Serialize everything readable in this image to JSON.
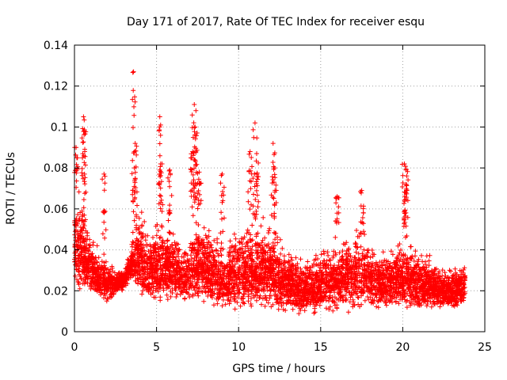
{
  "chart_data": {
    "type": "scatter",
    "title": "Day 171 of 2017, Rate Of TEC Index for receiver esqu",
    "xlabel": "GPS time / hours",
    "ylabel": "ROTI / TECUs",
    "xlim": [
      0,
      25
    ],
    "ylim": [
      0,
      0.14
    ],
    "xticks": [
      0,
      5,
      10,
      15,
      20,
      25
    ],
    "xtick_labels": [
      "0",
      "5",
      "10",
      "15",
      "20",
      "25"
    ],
    "yticks": [
      0,
      0.02,
      0.04,
      0.06,
      0.08,
      0.1,
      0.12,
      0.14
    ],
    "ytick_labels": [
      "0",
      "0.02",
      "0.04",
      "0.06",
      "0.08",
      "0.1",
      "0.12",
      "0.14"
    ],
    "grid": true,
    "marker": "+",
    "color": "#ff0000",
    "profile": {
      "note": "approximate density envelope read from the plot (hours, ROTI)",
      "x": [
        0.0,
        0.5,
        1.0,
        1.5,
        2.0,
        2.5,
        3.0,
        3.5,
        4.0,
        4.5,
        5.0,
        5.5,
        6.0,
        6.5,
        7.0,
        7.5,
        8.0,
        9.0,
        10.0,
        11.0,
        12.0,
        13.0,
        14.0,
        15.0,
        16.0,
        17.0,
        18.0,
        19.0,
        20.0,
        21.0,
        22.0,
        23.0,
        23.8
      ],
      "low": [
        0.02,
        0.018,
        0.016,
        0.014,
        0.013,
        0.018,
        0.02,
        0.025,
        0.015,
        0.012,
        0.012,
        0.013,
        0.014,
        0.013,
        0.014,
        0.013,
        0.012,
        0.01,
        0.01,
        0.01,
        0.01,
        0.009,
        0.008,
        0.008,
        0.009,
        0.009,
        0.01,
        0.01,
        0.011,
        0.01,
        0.01,
        0.01,
        0.012
      ],
      "high": [
        0.065,
        0.07,
        0.045,
        0.04,
        0.035,
        0.03,
        0.03,
        0.045,
        0.06,
        0.05,
        0.055,
        0.055,
        0.05,
        0.04,
        0.045,
        0.06,
        0.05,
        0.045,
        0.05,
        0.055,
        0.05,
        0.04,
        0.035,
        0.04,
        0.045,
        0.05,
        0.045,
        0.04,
        0.045,
        0.04,
        0.035,
        0.03,
        0.035
      ]
    },
    "peaks": [
      {
        "x": 0.1,
        "y": 0.09
      },
      {
        "x": 0.55,
        "y": 0.105
      },
      {
        "x": 0.6,
        "y": 0.098
      },
      {
        "x": 1.8,
        "y": 0.077
      },
      {
        "x": 3.6,
        "y": 0.127
      },
      {
        "x": 3.7,
        "y": 0.092
      },
      {
        "x": 3.65,
        "y": 0.08
      },
      {
        "x": 5.2,
        "y": 0.105
      },
      {
        "x": 5.25,
        "y": 0.101
      },
      {
        "x": 5.8,
        "y": 0.079
      },
      {
        "x": 7.3,
        "y": 0.111
      },
      {
        "x": 7.4,
        "y": 0.108
      },
      {
        "x": 7.35,
        "y": 0.1
      },
      {
        "x": 7.2,
        "y": 0.088
      },
      {
        "x": 7.6,
        "y": 0.078
      },
      {
        "x": 9.0,
        "y": 0.077
      },
      {
        "x": 10.7,
        "y": 0.088
      },
      {
        "x": 11.0,
        "y": 0.102
      },
      {
        "x": 11.1,
        "y": 0.087
      },
      {
        "x": 12.1,
        "y": 0.092
      },
      {
        "x": 12.2,
        "y": 0.08
      },
      {
        "x": 16.0,
        "y": 0.066
      },
      {
        "x": 17.5,
        "y": 0.069
      },
      {
        "x": 20.1,
        "y": 0.082
      },
      {
        "x": 20.2,
        "y": 0.079
      },
      {
        "x": 20.2,
        "y": 0.072
      }
    ]
  }
}
